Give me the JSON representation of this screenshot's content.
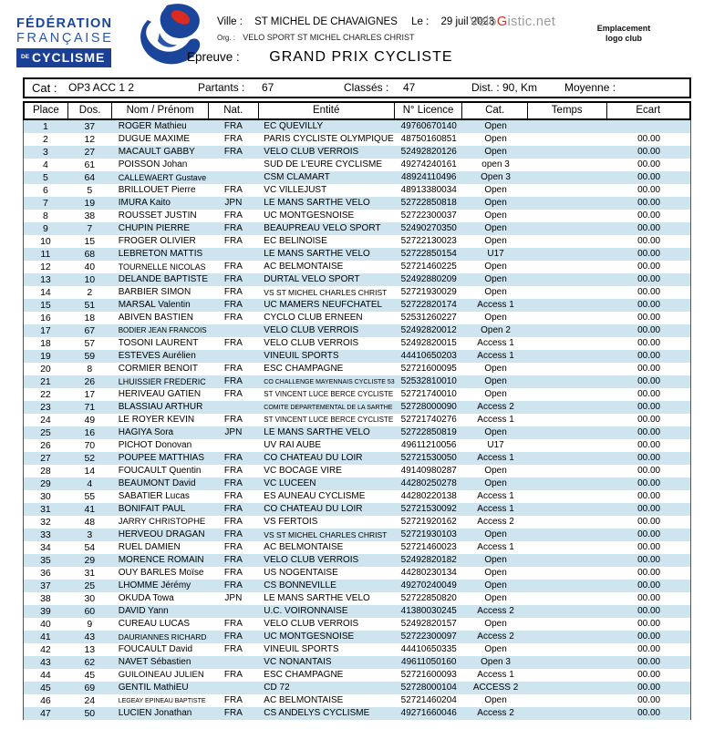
{
  "header": {
    "logo": {
      "line1": "FÉDÉRATION",
      "line2": "FRANÇAISE",
      "de": "DE",
      "cyclisme": "CYCLISME"
    },
    "ville_label": "Ville :",
    "ville": "ST MICHEL DE CHAVAIGNES",
    "date_label": "Le :",
    "date": "29 juil 2023",
    "brand": {
      "pre": "Velo",
      "g": "G",
      "post": "istic.net"
    },
    "org_label": "Org. :",
    "org": "VELO SPORT ST MICHEL CHARLES CHRIST",
    "epreuve_label": "Epreuve :",
    "epreuve": "GRAND PRIX CYCLISTE",
    "logo_club_line1": "Emplacement",
    "logo_club_line2": "logo club"
  },
  "info_bar": {
    "cat_label": "Cat :",
    "cat": "OP3 ACC 1 2",
    "partants_label": "Partants :",
    "partants": "67",
    "classes_label": "Classés :",
    "classes": "47",
    "dist": "Dist. : 90, Km",
    "moyenne_label": "Moyenne :"
  },
  "table": {
    "columns": [
      "Place",
      "Dos.",
      "Nom  /  Prénom",
      "Nat.",
      "Entité",
      "N° Licence",
      "Cat.",
      "Temps",
      "Ecart"
    ],
    "rows": [
      {
        "place": "1",
        "dos": "37",
        "nom": "ROGER  Mathieu",
        "nat": "FRA",
        "entite": "EC QUEVILLY",
        "licence": "49760670140",
        "cat": "Open",
        "temps": "",
        "ecart": ""
      },
      {
        "place": "2",
        "dos": "12",
        "nom": "DUGUE  MAXIME",
        "nat": "FRA",
        "entite": "PARIS CYCLISTE OLYMPIQUE",
        "licence": "48750160851",
        "cat": "Open",
        "temps": "",
        "ecart": "00.00"
      },
      {
        "place": "3",
        "dos": "27",
        "nom": "MACAULT  GABBY",
        "nat": "FRA",
        "entite": "VELO CLUB VERROIS",
        "licence": "52492820126",
        "cat": "Open",
        "temps": "",
        "ecart": "00.00"
      },
      {
        "place": "4",
        "dos": "61",
        "nom": "POISSON  Johan",
        "nat": "",
        "entite": "SUD DE L'EURE CYCLISME",
        "licence": "49274240161",
        "cat": "open 3",
        "temps": "",
        "ecart": "00.00"
      },
      {
        "place": "5",
        "dos": "64",
        "nom": "CALLEWAERT  Gustave",
        "nat": "",
        "entite": "CSM CLAMART",
        "licence": "48924110496",
        "cat": "Open 3",
        "temps": "",
        "ecart": "00.00"
      },
      {
        "place": "6",
        "dos": "5",
        "nom": "BRILLOUET  Pierre",
        "nat": "FRA",
        "entite": "VC VILLEJUST",
        "licence": "48913380034",
        "cat": "Open",
        "temps": "",
        "ecart": "00.00"
      },
      {
        "place": "7",
        "dos": "19",
        "nom": "IMURA  Kaito",
        "nat": "JPN",
        "entite": "LE MANS SARTHE VELO",
        "licence": "52722850818",
        "cat": "Open",
        "temps": "",
        "ecart": "00.00"
      },
      {
        "place": "8",
        "dos": "38",
        "nom": "ROUSSET  JUSTIN",
        "nat": "FRA",
        "entite": "UC MONTGESNOISE",
        "licence": "52722300037",
        "cat": "Open",
        "temps": "",
        "ecart": "00.00"
      },
      {
        "place": "9",
        "dos": "7",
        "nom": "CHUPIN  PIERRE",
        "nat": "FRA",
        "entite": "BEAUPREAU VELO SPORT",
        "licence": "52490270350",
        "cat": "Open",
        "temps": "",
        "ecart": "00.00"
      },
      {
        "place": "10",
        "dos": "15",
        "nom": "FROGER  OLIVIER",
        "nat": "FRA",
        "entite": "EC BELINOISE",
        "licence": "52722130023",
        "cat": "Open",
        "temps": "",
        "ecart": "00.00"
      },
      {
        "place": "11",
        "dos": "68",
        "nom": "LEBRETON  MATTIS",
        "nat": "",
        "entite": "LE MANS SARTHE VELO",
        "licence": "52722850154",
        "cat": "U17",
        "temps": "",
        "ecart": "00.00"
      },
      {
        "place": "12",
        "dos": "40",
        "nom": "TOURNELLE  NICOLAS",
        "nat": "FRA",
        "entite": "AC BELMONTAISE",
        "licence": "52721460225",
        "cat": "Open",
        "temps": "",
        "ecart": "00.00"
      },
      {
        "place": "13",
        "dos": "10",
        "nom": "DELANDE  BAPTISTE",
        "nat": "FRA",
        "entite": "DURTAL VELO SPORT",
        "licence": "52492880209",
        "cat": "Open",
        "temps": "",
        "ecart": "00.00"
      },
      {
        "place": "14",
        "dos": "2",
        "nom": "BARBIER  SIMON",
        "nat": "FRA",
        "entite": "VS ST MICHEL CHARLES CHRIST",
        "licence": "52721930029",
        "cat": "Open",
        "temps": "",
        "ecart": "00.00"
      },
      {
        "place": "15",
        "dos": "51",
        "nom": "MARSAL  Valentin",
        "nat": "FRA",
        "entite": "UC MAMERS NEUFCHATEL",
        "licence": "52722820174",
        "cat": "Access 1",
        "temps": "",
        "ecart": "00.00"
      },
      {
        "place": "16",
        "dos": "18",
        "nom": "ABIVEN  BASTIEN",
        "nat": "FRA",
        "entite": "CYCLO CLUB ERNEEN",
        "licence": "52531260227",
        "cat": "Open",
        "temps": "",
        "ecart": "00.00"
      },
      {
        "place": "17",
        "dos": "67",
        "nom": "BODIER  JEAN FRANCOIS",
        "nat": "",
        "entite": "VELO CLUB VERROIS",
        "licence": "52492820012",
        "cat": "Open 2",
        "temps": "",
        "ecart": "00.00"
      },
      {
        "place": "18",
        "dos": "57",
        "nom": "TOSONI  LAURENT",
        "nat": "FRA",
        "entite": "VELO CLUB VERROIS",
        "licence": "52492820015",
        "cat": "Access 1",
        "temps": "",
        "ecart": "00.00"
      },
      {
        "place": "19",
        "dos": "59",
        "nom": "ESTEVES  Aurélien",
        "nat": "",
        "entite": "VINEUIL SPORTS",
        "licence": "44410650203",
        "cat": "Access 1",
        "temps": "",
        "ecart": "00.00"
      },
      {
        "place": "20",
        "dos": "8",
        "nom": "CORMIER  BENOIT",
        "nat": "FRA",
        "entite": "ESC CHAMPAGNE",
        "licence": "52721600095",
        "cat": "Open",
        "temps": "",
        "ecart": "00.00"
      },
      {
        "place": "21",
        "dos": "26",
        "nom": "LHUISSIER  FREDERIC",
        "nat": "FRA",
        "entite": "CO CHALLENGE MAYENNAIS CYCLISTE 53",
        "licence": "52532810010",
        "cat": "Open",
        "temps": "",
        "ecart": "00.00"
      },
      {
        "place": "22",
        "dos": "17",
        "nom": "HERIVEAU  GATIEN",
        "nat": "FRA",
        "entite": "ST VINCENT LUCE BERCE CYCLISTE",
        "licence": "52721740010",
        "cat": "Open",
        "temps": "",
        "ecart": "00.00"
      },
      {
        "place": "23",
        "dos": "71",
        "nom": "BLASSIAU  ARTHUR",
        "nat": "",
        "entite": "COMITE DEPARTEMENTAL DE LA SARTHE",
        "licence": "52728000090",
        "cat": "Access 2",
        "temps": "",
        "ecart": "00.00"
      },
      {
        "place": "24",
        "dos": "49",
        "nom": "LE ROYER  KEVIN",
        "nat": "FRA",
        "entite": "ST VINCENT LUCE BERCE CYCLISTE",
        "licence": "52721740276",
        "cat": "Access 1",
        "temps": "",
        "ecart": "00.00"
      },
      {
        "place": "25",
        "dos": "16",
        "nom": "HAGIYA  Sora",
        "nat": "JPN",
        "entite": "LE MANS SARTHE VELO",
        "licence": "52722850819",
        "cat": "Open",
        "temps": "",
        "ecart": "00.00"
      },
      {
        "place": "26",
        "dos": "70",
        "nom": "PICHOT  Donovan",
        "nat": "",
        "entite": "UV RAI AUBE",
        "licence": "49611210056",
        "cat": "U17",
        "temps": "",
        "ecart": "00.00"
      },
      {
        "place": "27",
        "dos": "52",
        "nom": "POUPEE  MATTHIAS",
        "nat": "FRA",
        "entite": "CO CHATEAU DU LOIR",
        "licence": "52721530050",
        "cat": "Access 1",
        "temps": "",
        "ecart": "00.00"
      },
      {
        "place": "28",
        "dos": "14",
        "nom": "FOUCAULT  Quentin",
        "nat": "FRA",
        "entite": "VC BOCAGE VIRE",
        "licence": "49140980287",
        "cat": "Open",
        "temps": "",
        "ecart": "00.00"
      },
      {
        "place": "29",
        "dos": "4",
        "nom": "BEAUMONT  David",
        "nat": "FRA",
        "entite": "VC LUCEEN",
        "licence": "44280250278",
        "cat": "Open",
        "temps": "",
        "ecart": "00.00"
      },
      {
        "place": "30",
        "dos": "55",
        "nom": "SABATIER  Lucas",
        "nat": "FRA",
        "entite": "ES AUNEAU CYCLISME",
        "licence": "44280220138",
        "cat": "Access 1",
        "temps": "",
        "ecart": "00.00"
      },
      {
        "place": "31",
        "dos": "41",
        "nom": "BONIFAIT  PAUL",
        "nat": "FRA",
        "entite": "CO CHATEAU DU LOIR",
        "licence": "52721530092",
        "cat": "Access 1",
        "temps": "",
        "ecart": "00.00"
      },
      {
        "place": "32",
        "dos": "48",
        "nom": "JARRY  CHRISTOPHE",
        "nat": "FRA",
        "entite": "VS FERTOIS",
        "licence": "52721920162",
        "cat": "Access 2",
        "temps": "",
        "ecart": "00.00"
      },
      {
        "place": "33",
        "dos": "3",
        "nom": "HERVEOU  DRAGAN",
        "nat": "FRA",
        "entite": "VS ST MICHEL CHARLES CHRIST",
        "licence": "52721930103",
        "cat": "Open",
        "temps": "",
        "ecart": "00.00"
      },
      {
        "place": "34",
        "dos": "54",
        "nom": "RUEL  DAMIEN",
        "nat": "FRA",
        "entite": "AC BELMONTAISE",
        "licence": "52721460023",
        "cat": "Access 1",
        "temps": "",
        "ecart": "00.00"
      },
      {
        "place": "35",
        "dos": "29",
        "nom": "MORENCE  ROMAIN",
        "nat": "FRA",
        "entite": "VELO CLUB VERROIS",
        "licence": "52492820182",
        "cat": "Open",
        "temps": "",
        "ecart": "00.00"
      },
      {
        "place": "36",
        "dos": "31",
        "nom": "OUY BARLES  Moïse",
        "nat": "FRA",
        "entite": "US NOGENTAISE",
        "licence": "44280230134",
        "cat": "Open",
        "temps": "",
        "ecart": "00.00"
      },
      {
        "place": "37",
        "dos": "25",
        "nom": "LHOMME  Jérémy",
        "nat": "FRA",
        "entite": "CS BONNEVILLE",
        "licence": "49270240049",
        "cat": "Open",
        "temps": "",
        "ecart": "00.00"
      },
      {
        "place": "38",
        "dos": "30",
        "nom": "OKUDA  Towa",
        "nat": "JPN",
        "entite": "LE MANS SARTHE VELO",
        "licence": "52722850820",
        "cat": "Open",
        "temps": "",
        "ecart": "00.00"
      },
      {
        "place": "39",
        "dos": "60",
        "nom": "DAVID  Yann",
        "nat": "",
        "entite": "U.C. VOIRONNAISE",
        "licence": "41380030245",
        "cat": "Access 2",
        "temps": "",
        "ecart": "00.00"
      },
      {
        "place": "40",
        "dos": "9",
        "nom": "CUREAU  LUCAS",
        "nat": "FRA",
        "entite": "VELO CLUB VERROIS",
        "licence": "52492820157",
        "cat": "Open",
        "temps": "",
        "ecart": "00.00"
      },
      {
        "place": "41",
        "dos": "43",
        "nom": "DAURIANNES  RICHARD",
        "nat": "FRA",
        "entite": "UC MONTGESNOISE",
        "licence": "52722300097",
        "cat": "Access 2",
        "temps": "",
        "ecart": "00.00"
      },
      {
        "place": "42",
        "dos": "13",
        "nom": "FOUCAULT  David",
        "nat": "FRA",
        "entite": "VINEUIL SPORTS",
        "licence": "44410650335",
        "cat": "Open",
        "temps": "",
        "ecart": "00.00"
      },
      {
        "place": "43",
        "dos": "62",
        "nom": "NAVET  Sébastien",
        "nat": "",
        "entite": "VC NONANTAIS",
        "licence": "49611050160",
        "cat": "Open 3",
        "temps": "",
        "ecart": "00.00"
      },
      {
        "place": "44",
        "dos": "45",
        "nom": "GUILOINEAU  JULIEN",
        "nat": "FRA",
        "entite": "ESC CHAMPAGNE",
        "licence": "52721600093",
        "cat": "Access 1",
        "temps": "",
        "ecart": "00.00"
      },
      {
        "place": "45",
        "dos": "69",
        "nom": "GENTIL  MathiEU",
        "nat": "",
        "entite": "CD 72",
        "licence": "52728000104",
        "cat": "ACCESS 2",
        "temps": "",
        "ecart": "00.00"
      },
      {
        "place": "46",
        "dos": "24",
        "nom": "LEGEAY EPINEAU  BAPTISTE",
        "nat": "FRA",
        "entite": "AC BELMONTAISE",
        "licence": "52721460204",
        "cat": "Open",
        "temps": "",
        "ecart": "00.00"
      },
      {
        "place": "47",
        "dos": "50",
        "nom": "LUCIEN  Jonathan",
        "nat": "FRA",
        "entite": "CS ANDELYS CYCLISME",
        "licence": "49271660046",
        "cat": "Access 2",
        "temps": "",
        "ecart": "00.00"
      }
    ]
  },
  "colors": {
    "row_alt": "#cee4ef",
    "logo_blue": "#1b459b",
    "logo_box_blue": "#1b3f94",
    "brand_gray": "#9a9a9a",
    "brand_red": "#d92b1f"
  }
}
